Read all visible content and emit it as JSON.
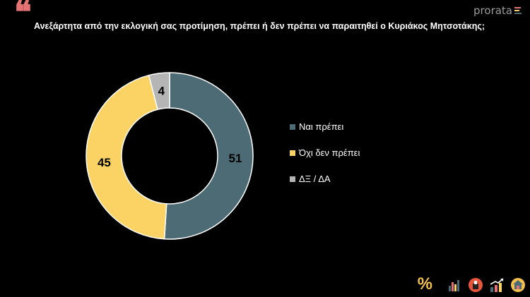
{
  "header": {
    "quote_glyph": "❝",
    "title": "Ανεξάρτητα από την εκλογική σας προτίμηση, πρέπει ή δεν πρέπει να παραιτηθεί ο Κυριάκος Μητσοτάκης;",
    "brand": "prorata"
  },
  "colors": {
    "background": "#000000",
    "yes": "#4d6b74",
    "no": "#fbd365",
    "dk": "#b5b5b5",
    "quote": "#e57373"
  },
  "chart_data": {
    "type": "pie",
    "variant": "donut",
    "categories": [
      "Ναι πρέπει",
      "Όχι δεν πρέπει",
      "ΔΞ / ΔΑ"
    ],
    "values": [
      51,
      45,
      4
    ],
    "colors": [
      "#4d6b74",
      "#fbd365",
      "#b5b5b5"
    ],
    "data_labels": [
      "51",
      "45",
      "4"
    ],
    "legend_position": "right"
  },
  "legend": {
    "items": [
      {
        "label": "Ναι πρέπει",
        "color": "#4d6b74"
      },
      {
        "label": "Όχι δεν πρέπει",
        "color": "#fbd365"
      },
      {
        "label": "ΔΞ / ΔΑ",
        "color": "#b5b5b5"
      }
    ]
  },
  "footer": {
    "icons": [
      "percent-icon",
      "bar-chart-icon",
      "ballot-box-icon",
      "trend-up-icon",
      "house-icon"
    ],
    "percent_glyph": "%"
  }
}
